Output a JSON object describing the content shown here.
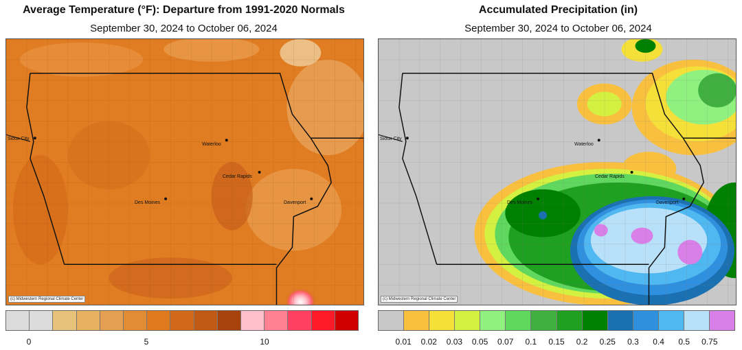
{
  "temperature_map": {
    "title": "Average Temperature (°F): Departure from 1991-2020 Normals",
    "subtitle": "September 30, 2024 to October 06, 2024",
    "credit": "(c) Midwestern Regional Climate Center",
    "cities": [
      "Sioux City",
      "Waterloo",
      "Cedar Rapids",
      "Des Moines",
      "Davenport"
    ],
    "legend_colors": [
      "#dcdcdc",
      "#dcdcdc",
      "#e8c27a",
      "#e6b060",
      "#e4a050",
      "#e28c34",
      "#e07a1e",
      "#d06a1a",
      "#c05a14",
      "#a8420c",
      "#ffc0cb",
      "#ff8090",
      "#ff4060",
      "#ff1a28",
      "#d00000"
    ],
    "legend_ticks": [
      "0",
      "5",
      "10"
    ]
  },
  "precipitation_map": {
    "title": "Accumulated Precipitation (in)",
    "subtitle": "September 30, 2024 to October 06, 2024",
    "credit": "(c) Midwestern Regional Climate Center",
    "cities": [
      "Sioux City",
      "Waterloo",
      "Cedar Rapids",
      "Des Moines",
      "Davenport"
    ],
    "legend_colors": [
      "#c8c8c8",
      "#f9c040",
      "#f5e03a",
      "#d4f040",
      "#90f080",
      "#60d860",
      "#40b040",
      "#20a020",
      "#008000",
      "#1a70b0",
      "#3090e0",
      "#50b8f0",
      "#b8e0f8",
      "#d880e8"
    ],
    "legend_ticks": [
      "0.01",
      "0.02",
      "0.03",
      "0.05",
      "0.07",
      "0.1",
      "0.15",
      "0.2",
      "0.25",
      "0.3",
      "0.4",
      "0.5",
      "0.75"
    ]
  }
}
